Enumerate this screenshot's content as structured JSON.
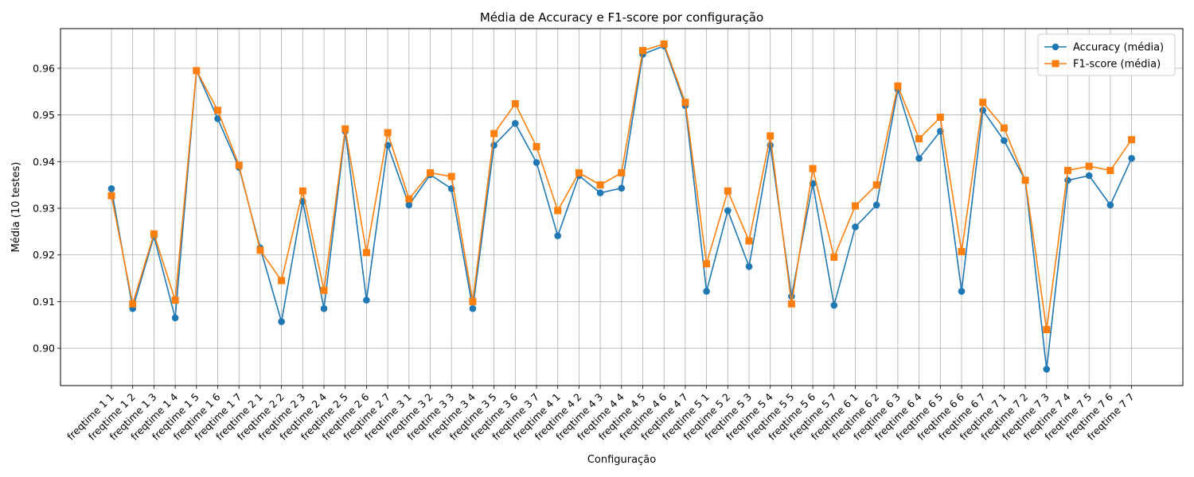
{
  "chart_data": {
    "type": "line",
    "title": "Média de Accuracy e F1-score por configuração",
    "xlabel": "Configuração",
    "ylabel": "Média (10 testes)",
    "ylim": [
      0.892,
      0.9685
    ],
    "yticks": [
      "0.90",
      "0.91",
      "0.92",
      "0.93",
      "0.94",
      "0.95",
      "0.96"
    ],
    "grid": true,
    "legend_position": "top-right",
    "categories": [
      "freqtime 1 1",
      "freqtime 1 2",
      "freqtime 1 3",
      "freqtime 1 4",
      "freqtime 1 5",
      "freqtime 1 6",
      "freqtime 1 7",
      "freqtime 2 1",
      "freqtime 2 2",
      "freqtime 2 3",
      "freqtime 2 4",
      "freqtime 2 5",
      "freqtime 2 6",
      "freqtime 2 7",
      "freqtime 3 1",
      "freqtime 3 2",
      "freqtime 3 3",
      "freqtime 3 4",
      "freqtime 3 5",
      "freqtime 3 6",
      "freqtime 3 7",
      "freqtime 4 1",
      "freqtime 4 2",
      "freqtime 4 3",
      "freqtime 4 4",
      "freqtime 4 5",
      "freqtime 4 6",
      "freqtime 4 7",
      "freqtime 5 1",
      "freqtime 5 2",
      "freqtime 5 3",
      "freqtime 5 4",
      "freqtime 5 5",
      "freqtime 5 6",
      "freqtime 5 7",
      "freqtime 6 1",
      "freqtime 6 2",
      "freqtime 6 3",
      "freqtime 6 4",
      "freqtime 6 5",
      "freqtime 6 6",
      "freqtime 6 7",
      "freqtime 7 1",
      "freqtime 7 2",
      "freqtime 7 3",
      "freqtime 7 4",
      "freqtime 7 5",
      "freqtime 7 6",
      "freqtime 7 7"
    ],
    "series": [
      {
        "name": "Accuracy (média)",
        "color": "#1f77b4",
        "marker": "circle",
        "values": [
          0.9342,
          0.9085,
          0.924,
          0.9065,
          0.9595,
          0.9492,
          0.9388,
          0.9215,
          0.9057,
          0.9315,
          0.9085,
          0.9465,
          0.9103,
          0.9435,
          0.9307,
          0.9372,
          0.9342,
          0.9085,
          0.9435,
          0.9482,
          0.9398,
          0.9241,
          0.937,
          0.9333,
          0.9343,
          0.963,
          0.9648,
          0.952,
          0.9122,
          0.9295,
          0.9175,
          0.9435,
          0.9111,
          0.9353,
          0.9092,
          0.926,
          0.9307,
          0.9555,
          0.9407,
          0.9465,
          0.9122,
          0.951,
          0.9445,
          0.936,
          0.8955,
          0.936,
          0.937,
          0.9307,
          0.9407
        ]
      },
      {
        "name": "F1-score (média)",
        "color": "#ff7f0e",
        "marker": "square",
        "values": [
          0.9327,
          0.9095,
          0.9245,
          0.9103,
          0.9595,
          0.951,
          0.9392,
          0.921,
          0.9145,
          0.9337,
          0.9124,
          0.947,
          0.9205,
          0.9462,
          0.932,
          0.9376,
          0.9368,
          0.91,
          0.946,
          0.9524,
          0.9432,
          0.9295,
          0.9376,
          0.935,
          0.9376,
          0.9638,
          0.9652,
          0.9527,
          0.9181,
          0.9337,
          0.923,
          0.9455,
          0.9095,
          0.9385,
          0.9195,
          0.9305,
          0.935,
          0.9562,
          0.9449,
          0.9495,
          0.9207,
          0.9527,
          0.9472,
          0.936,
          0.904,
          0.9381,
          0.939,
          0.9381,
          0.9447
        ]
      }
    ]
  }
}
